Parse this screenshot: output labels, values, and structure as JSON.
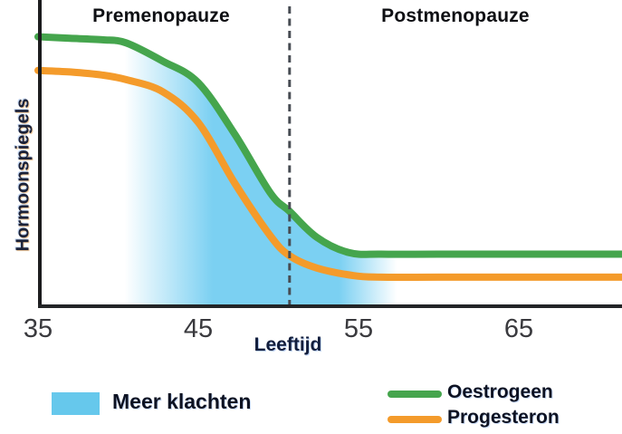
{
  "chart_data": {
    "type": "line",
    "title": "",
    "xlabel": "Leeftijd",
    "ylabel": "Hormoonspiegels",
    "x_ticks": [
      35,
      45,
      55,
      65
    ],
    "x_tick_labels": [
      "35",
      "45",
      "55",
      "65"
    ],
    "xlim": [
      35,
      71.45
    ],
    "ylim": [
      0,
      100
    ],
    "grid": false,
    "legend_position": "bottom",
    "annotations": {
      "region_left": "Premenopauze",
      "region_right": "Postmenopauze",
      "dashed_line_age": 50.7
    },
    "band": {
      "label": "Meer klachten",
      "color": "#7bd0f2",
      "swatch_color": "#66c8ec",
      "start_age": 40.4,
      "solid_start_age": 45.9,
      "solid_end_age": 53.8,
      "end_age": 57.4
    },
    "series": [
      {
        "name": "Oestrogeen",
        "color": "#45a54d",
        "x": [
          35,
          37,
          39,
          40.5,
          42.8,
          45,
          47.3,
          49.5,
          50.7,
          52.4,
          54.4,
          56.4,
          60,
          65,
          71.45
        ],
        "values": [
          88,
          87.5,
          87,
          86,
          80,
          73,
          56,
          37,
          31,
          22.5,
          17.5,
          17,
          17,
          17,
          17
        ]
      },
      {
        "name": "Progesteron",
        "color": "#f49b2b",
        "x": [
          35,
          37,
          39,
          40.5,
          42.8,
          45,
          47.3,
          49.5,
          50.7,
          52.4,
          54.7,
          56.4,
          60,
          65,
          71.45
        ],
        "values": [
          77,
          76.5,
          75.5,
          74,
          70,
          60,
          40,
          23,
          16.5,
          12.5,
          10,
          9.5,
          9.5,
          9.5,
          9.5
        ]
      }
    ]
  }
}
